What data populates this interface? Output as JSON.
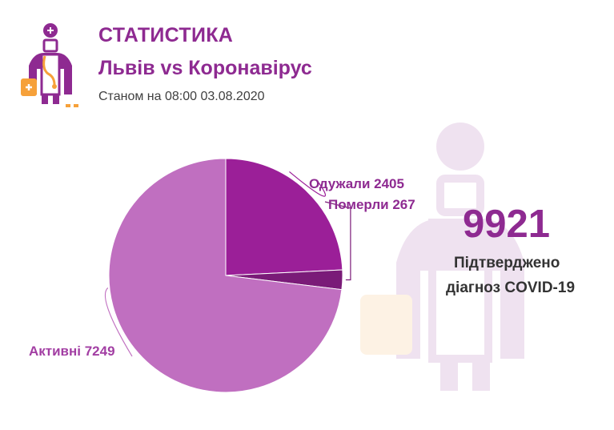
{
  "header": {
    "title": "СТАТИСТИКА",
    "subtitle": "Львів vs Коронавірус",
    "date": "Станом на 08:00 03.08.2020"
  },
  "kpi": {
    "value": "9921",
    "label_line1": "Підтверджено",
    "label_line2": "діагноз COVID-19"
  },
  "icons": {
    "logo": "doctor-icon",
    "watermark": "doctor-icon"
  },
  "colors": {
    "accent": "#8e2a91",
    "recovered": "#9b1f98",
    "deaths": "#7a1b78",
    "active": "#c06fc0",
    "orange": "#f6a13a"
  },
  "chart_data": {
    "type": "pie",
    "title": "",
    "slices": [
      {
        "label": "Одужали",
        "value": 2405,
        "display": "Одужали 2405",
        "color": "#9b1f98"
      },
      {
        "label": "Померли",
        "value": 267,
        "display": "Померли 267",
        "color": "#7a1b78"
      },
      {
        "label": "Активні",
        "value": 7249,
        "display": "Активні 7249",
        "color": "#c06fc0"
      }
    ]
  }
}
